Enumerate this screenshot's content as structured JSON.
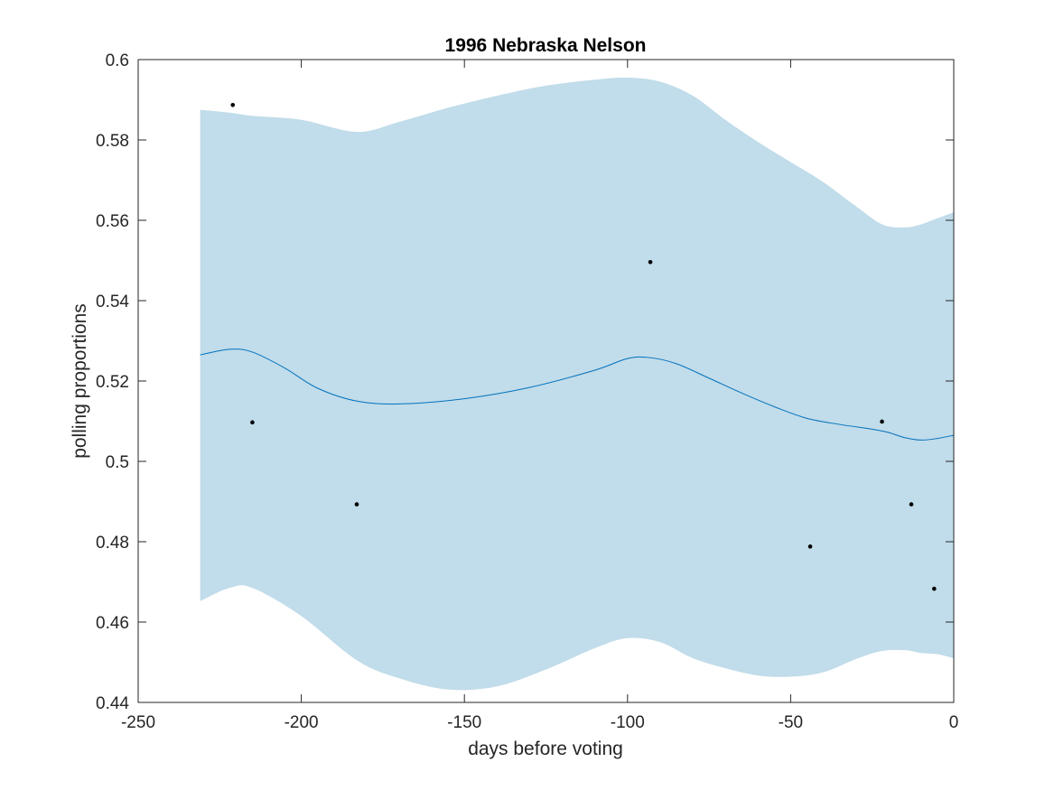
{
  "chart_data": {
    "type": "line",
    "title": "1996 Nebraska Nelson",
    "xlabel": "days before voting",
    "ylabel": "polling proportions",
    "xlim": [
      -250,
      0
    ],
    "ylim": [
      0.44,
      0.6
    ],
    "xticks": [
      -250,
      -200,
      -150,
      -100,
      -50,
      0
    ],
    "xtick_labels": [
      "-250",
      "-200",
      "-150",
      "-100",
      "-50",
      "0"
    ],
    "yticks": [
      0.44,
      0.46,
      0.48,
      0.5,
      0.52,
      0.54,
      0.56,
      0.58,
      0.6
    ],
    "ytick_labels": [
      "0.44",
      "0.46",
      "0.48",
      "0.5",
      "0.52",
      "0.54",
      "0.56",
      "0.58",
      "0.6"
    ],
    "grid": false,
    "colors": {
      "band": "#c1dcea",
      "line": "#0072bd",
      "points": "#000000",
      "axes": "#262626"
    },
    "band": {
      "x": [
        -231,
        -222,
        -215,
        -200,
        -183,
        -170,
        -155,
        -140,
        -125,
        -110,
        -100,
        -90,
        -80,
        -70,
        -60,
        -50,
        -40,
        -30,
        -22,
        -15,
        -10,
        -5,
        0
      ],
      "upper": [
        0.5875,
        0.5868,
        0.586,
        0.585,
        0.582,
        0.5845,
        0.588,
        0.591,
        0.5935,
        0.595,
        0.5955,
        0.5945,
        0.591,
        0.585,
        0.5795,
        0.5745,
        0.5695,
        0.5635,
        0.559,
        0.5582,
        0.559,
        0.5605,
        0.562
      ],
      "lower": [
        0.4652,
        0.4685,
        0.4685,
        0.4615,
        0.4505,
        0.446,
        0.4432,
        0.444,
        0.4482,
        0.4535,
        0.456,
        0.455,
        0.451,
        0.4485,
        0.4467,
        0.4464,
        0.4475,
        0.4508,
        0.4528,
        0.453,
        0.4523,
        0.452,
        0.451
      ]
    },
    "series": [
      {
        "x": [
          -231,
          -222,
          -215,
          -205,
          -195,
          -183,
          -170,
          -150,
          -130,
          -110,
          -100,
          -93,
          -85,
          -75,
          -65,
          -55,
          -45,
          -35,
          -25,
          -20,
          -15,
          -10,
          -5,
          0
        ],
        "values": [
          0.5265,
          0.5279,
          0.5272,
          0.5232,
          0.5182,
          0.515,
          0.5143,
          0.5156,
          0.5184,
          0.5227,
          0.5256,
          0.5258,
          0.5243,
          0.5207,
          0.517,
          0.5136,
          0.5107,
          0.5092,
          0.508,
          0.5072,
          0.5059,
          0.5053,
          0.5057,
          0.5065
        ]
      }
    ],
    "points": {
      "x": [
        -221,
        -215,
        -183,
        -93,
        -44,
        -22,
        -13,
        -6
      ],
      "y": [
        0.5887,
        0.5097,
        0.4893,
        0.5496,
        0.4788,
        0.5099,
        0.4893,
        0.4683
      ]
    }
  }
}
